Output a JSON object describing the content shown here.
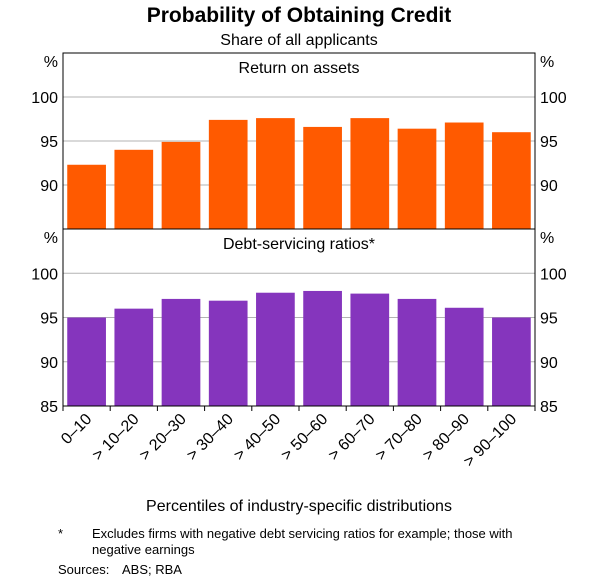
{
  "chart_data": {
    "type": "bar",
    "title": "Probability of Obtaining Credit",
    "subtitle": "Share of all applicants",
    "xlabel": "Percentiles of industry-specific distributions",
    "unit": "%",
    "categories": [
      "0–10",
      "> 10–20",
      "> 20–30",
      "> 30–40",
      "> 40–50",
      "> 50–60",
      "> 60–70",
      "> 70–80",
      "> 80–90",
      "> 90–100"
    ],
    "yticks": [
      85,
      90,
      95,
      100
    ],
    "ylim": [
      85,
      105
    ],
    "panels": [
      {
        "title": "Return on assets",
        "color": "#ff5a00",
        "series": [
          {
            "values": [
              92.3,
              94.0,
              94.9,
              97.4,
              97.6,
              96.6,
              97.6,
              96.4,
              97.1,
              96.0
            ]
          }
        ]
      },
      {
        "title": "Debt-servicing ratios*",
        "color": "#8535bd",
        "series": [
          {
            "values": [
              95.0,
              96.0,
              97.1,
              96.9,
              97.8,
              98.0,
              97.7,
              97.1,
              96.1,
              95.0
            ]
          }
        ]
      }
    ]
  },
  "footnote": {
    "marker": "*",
    "text": "Excludes firms with negative debt servicing ratios for example; those with negative earnings"
  },
  "sources": {
    "label": "Sources:",
    "text": "ABS; RBA"
  }
}
